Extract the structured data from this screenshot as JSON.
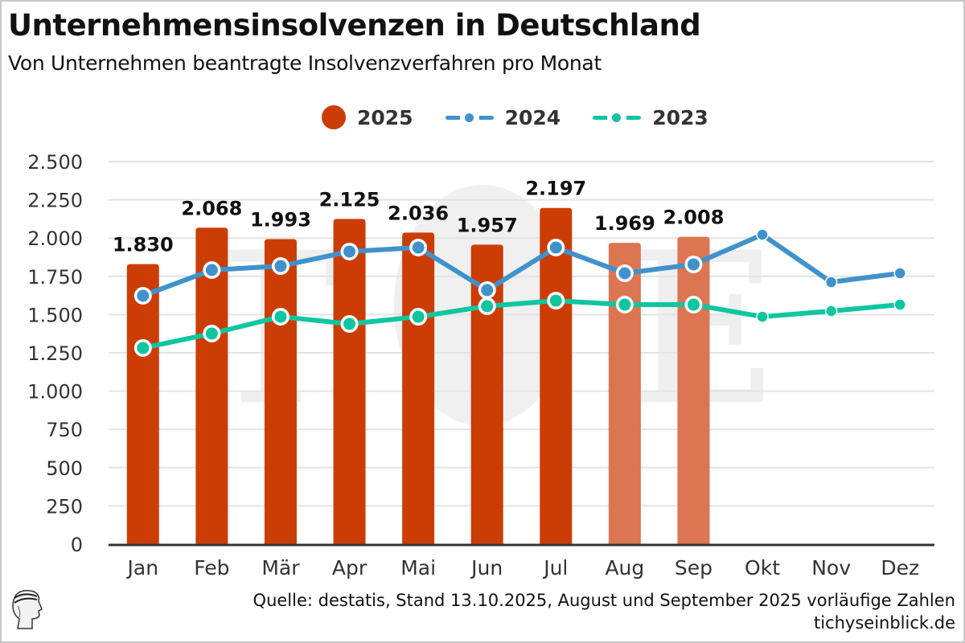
{
  "header": {
    "title": "Unternehmensinsolvenzen in Deutschland",
    "subtitle": "Von Unternehmen beantragte Insolvenzverfahren pro Monat"
  },
  "legend": [
    {
      "label": "2025",
      "type": "bar-dot",
      "color": "#cc3d06"
    },
    {
      "label": "2024",
      "type": "line",
      "color": "#3f92cc"
    },
    {
      "label": "2023",
      "type": "line",
      "color": "#0fc6a0"
    }
  ],
  "footer": {
    "source": "Quelle: destatis, Stand 13.10.2025, August und September 2025 vorläufige Zahlen",
    "site": "tichyseinblick.de",
    "logo_icon": "hermes-head-logo-icon"
  },
  "colors": {
    "bar_final": "#cc3d06",
    "bar_preliminary": "#dc7552",
    "line_2024": "#3f92cc",
    "line_2023": "#0fc6a0",
    "grid": "#e3e3e3",
    "axis": "#333333"
  },
  "chart_data": {
    "type": "bar",
    "title": "Unternehmensinsolvenzen in Deutschland",
    "subtitle": "Von Unternehmen beantragte Insolvenzverfahren pro Monat",
    "xlabel": "",
    "ylabel": "",
    "categories": [
      "Jan",
      "Feb",
      "Mär",
      "Apr",
      "Mai",
      "Jun",
      "Jul",
      "Aug",
      "Sep",
      "Okt",
      "Nov",
      "Dez"
    ],
    "ylim": [
      0,
      2500
    ],
    "yticks": [
      0,
      250,
      500,
      750,
      1000,
      1250,
      1500,
      1750,
      2000,
      2250,
      2500
    ],
    "ytick_labels": [
      "0",
      "250",
      "500",
      "750",
      "1.000",
      "1.250",
      "1.500",
      "1.750",
      "2.000",
      "2.250",
      "2.500"
    ],
    "grid": true,
    "legend_position": "top-center",
    "series": [
      {
        "name": "2025",
        "kind": "bar",
        "values": [
          1830,
          2068,
          1993,
          2125,
          2036,
          1957,
          2197,
          1969,
          2008,
          null,
          null,
          null
        ],
        "data_labels": [
          "1.830",
          "2.068",
          "1.993",
          "2.125",
          "2.036",
          "1.957",
          "2.197",
          "1.969",
          "2.008",
          "",
          "",
          ""
        ],
        "preliminary": [
          false,
          false,
          false,
          false,
          false,
          false,
          false,
          true,
          true,
          false,
          false,
          false
        ]
      },
      {
        "name": "2024",
        "kind": "line",
        "values": [
          1623,
          1791,
          1817,
          1912,
          1938,
          1660,
          1938,
          1770,
          1828,
          2022,
          1712,
          1770
        ]
      },
      {
        "name": "2023",
        "kind": "line",
        "values": [
          1282,
          1376,
          1486,
          1439,
          1486,
          1555,
          1591,
          1565,
          1565,
          1486,
          1523,
          1565
        ]
      }
    ],
    "annotations": [
      "August und September 2025 vorläufige Zahlen"
    ]
  }
}
